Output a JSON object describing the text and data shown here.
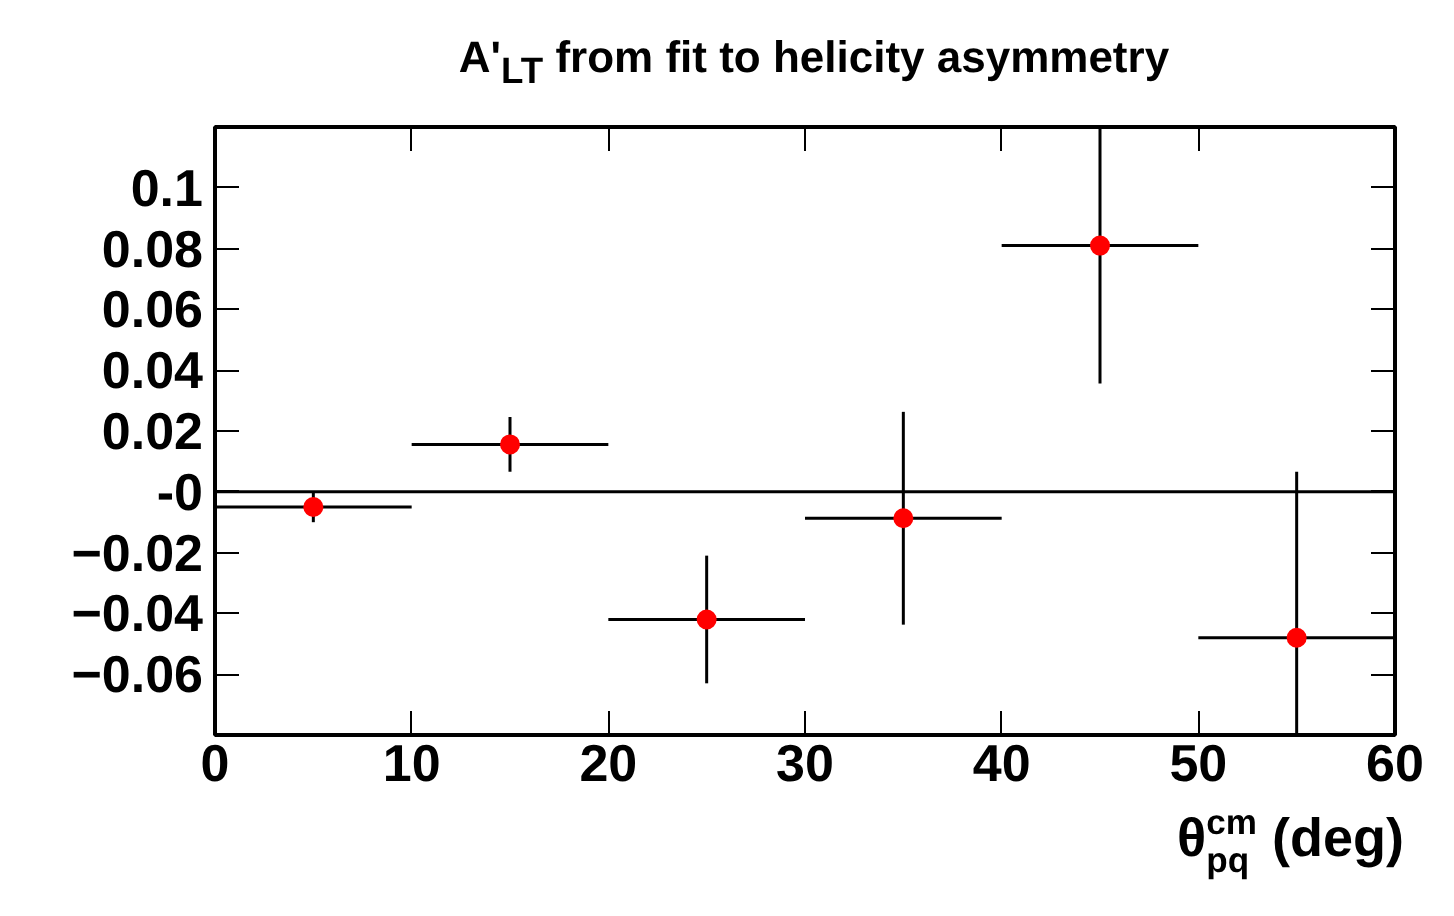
{
  "chart_data": {
    "type": "scatter",
    "title": "A'$_{LT}$ from fit to helicity asymmetry",
    "xlabel": "θ$^{cm}$$_{pq}$ (deg)",
    "x": [
      5,
      15,
      25,
      35,
      45,
      55
    ],
    "series": [
      {
        "color": "#ff0000",
        "values": [
          -0.005,
          0.0156,
          -0.042,
          -0.0087,
          0.081,
          -0.048
        ],
        "errors": [
          0.005,
          0.009,
          0.021,
          0.035,
          [
            0.0356,
            0.12
          ],
          [
            -0.08,
            0.0066
          ]
        ],
        "xerrors": [
          5,
          5,
          5,
          5,
          5,
          5
        ]
      }
    ],
    "marker": "circle",
    "xlim": [
      0,
      60
    ],
    "xticks": [
      0,
      10,
      20,
      30,
      40,
      50,
      60
    ],
    "ylim": [
      -0.08,
      0.12
    ],
    "yticks": [
      -0.06,
      -0.04,
      -0.02,
      {
        "value": 0,
        "label": "-0"
      },
      0.02,
      0.04,
      0.06,
      0.08,
      0.1
    ],
    "ref_lines": [
      {
        "axis": "y",
        "value": 0,
        "color": "#000000"
      }
    ],
    "grid": false
  }
}
